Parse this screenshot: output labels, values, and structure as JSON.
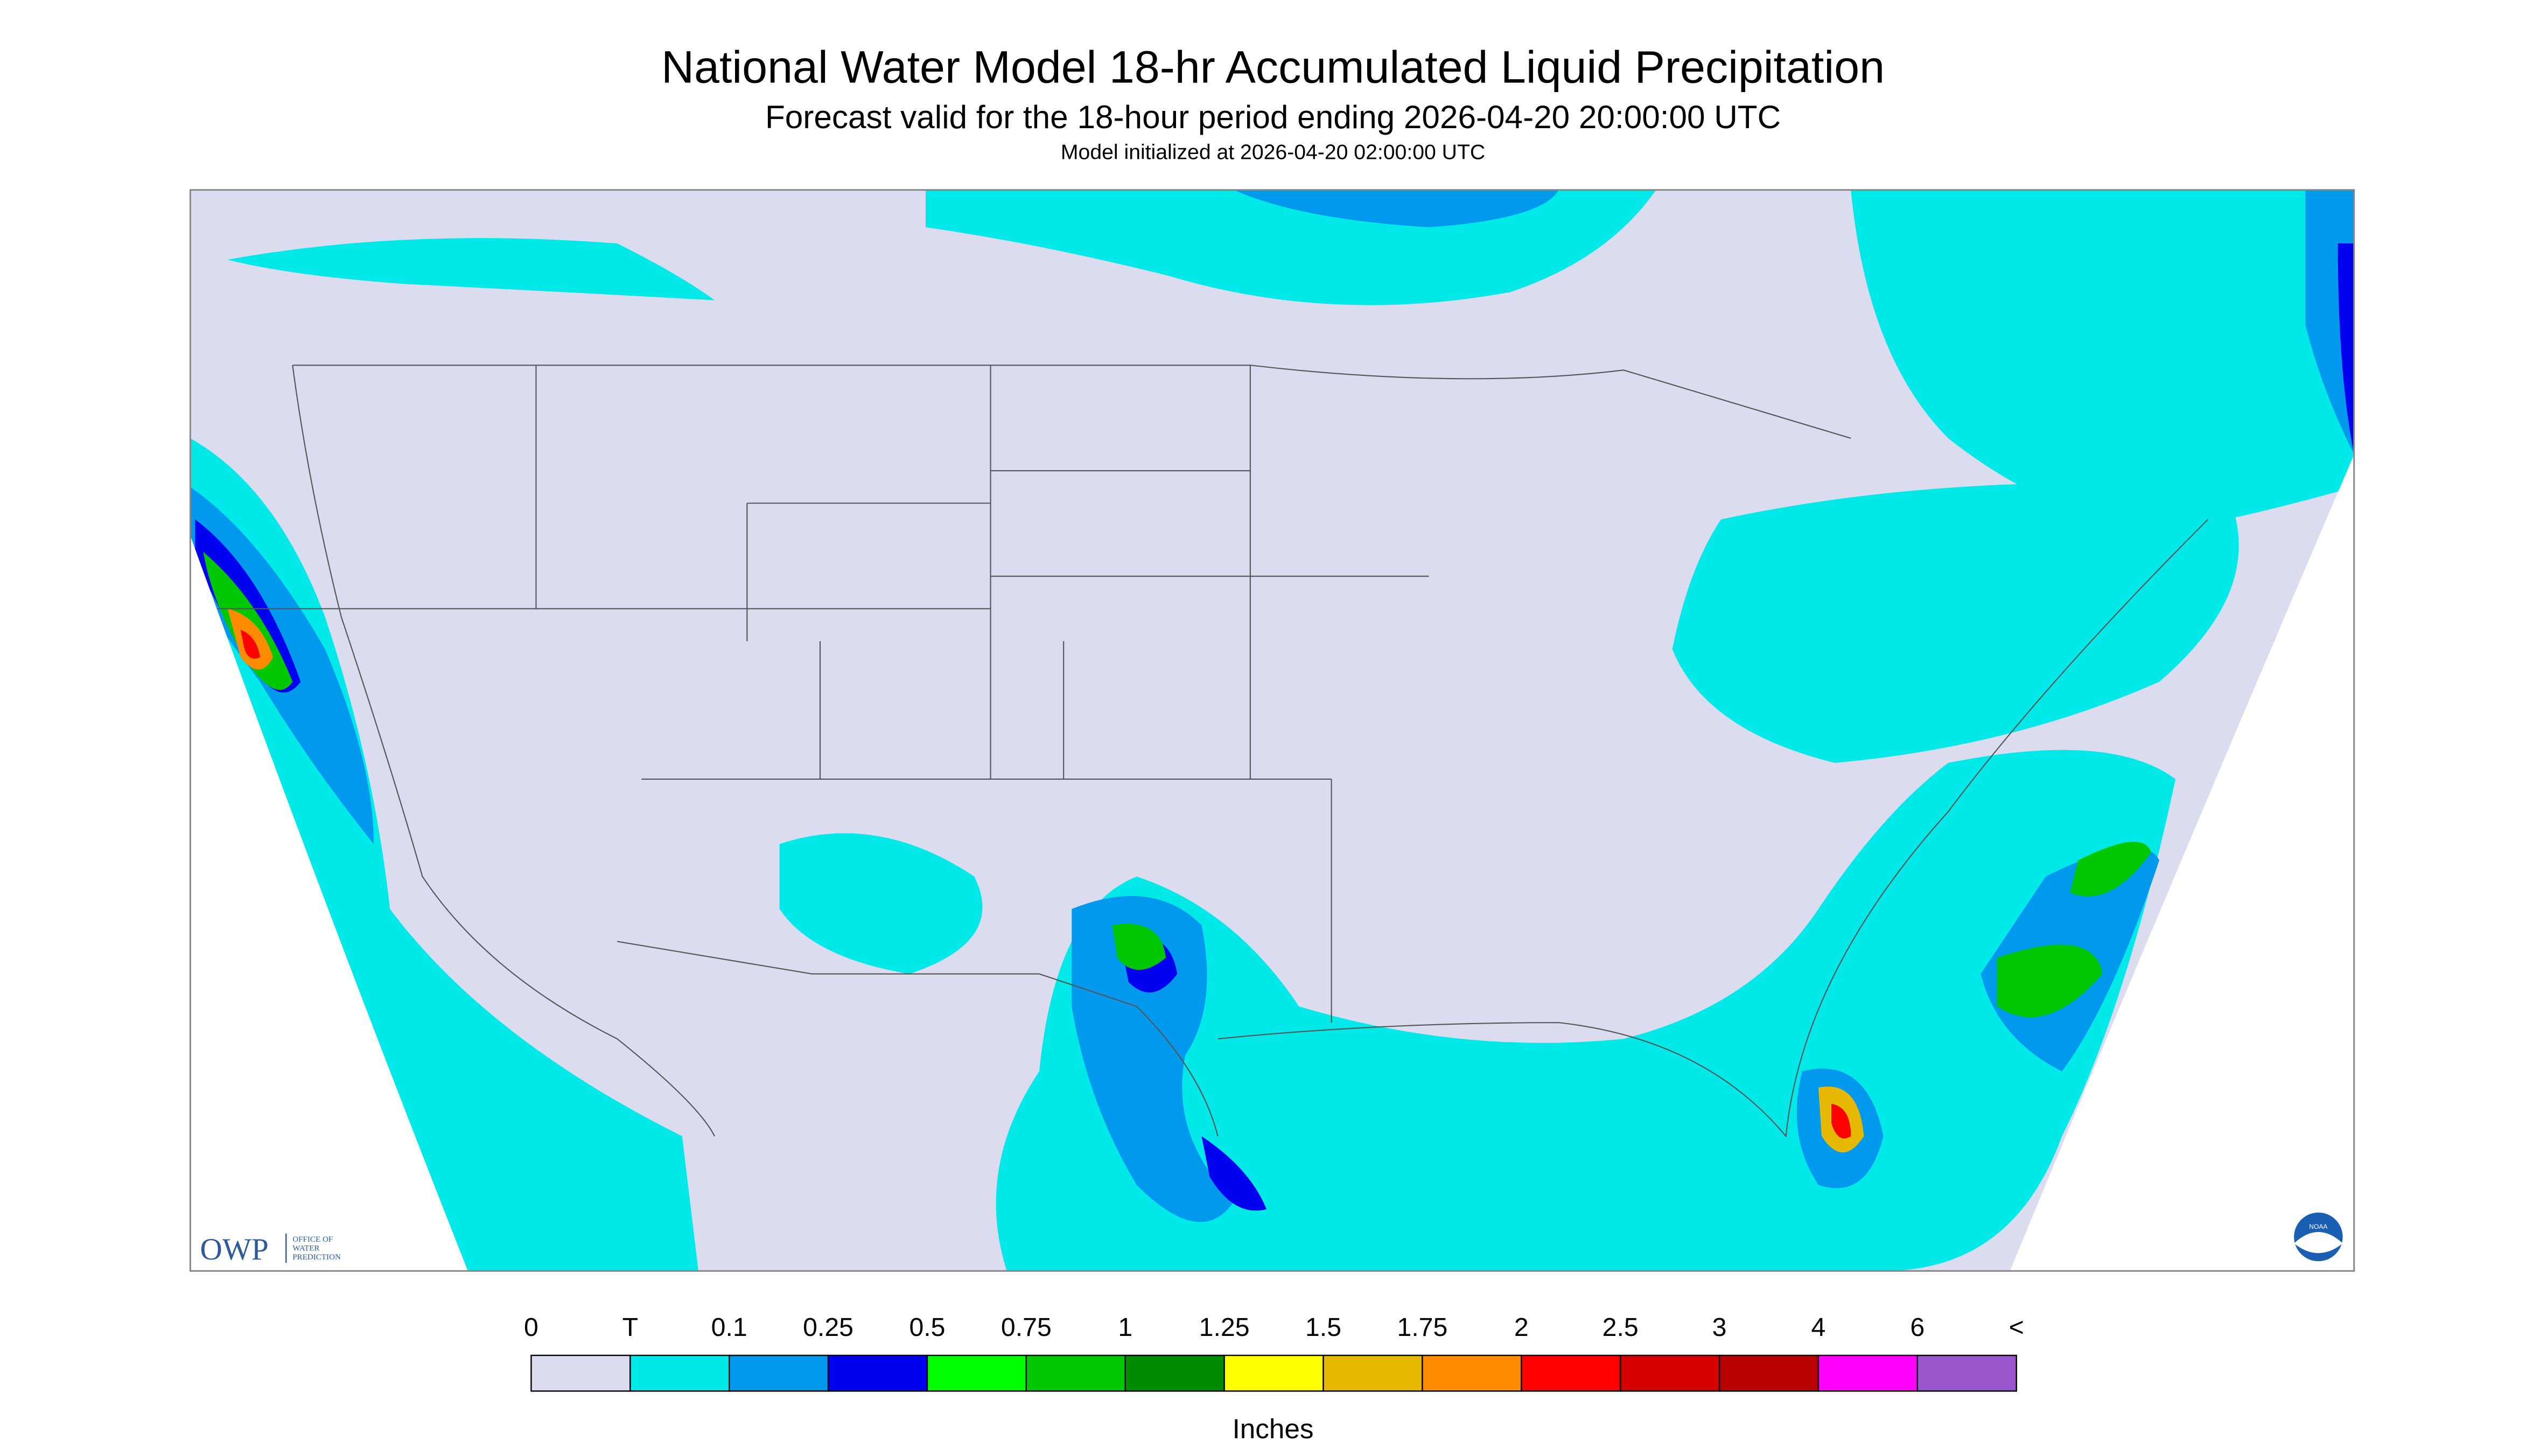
{
  "header": {
    "title": "National Water Model 18-hr Accumulated Liquid Precipitation",
    "subtitle": "Forecast valid for the 18-hour period ending 2026-04-20 20:00:00 UTC",
    "note": "Model initialized at 2026-04-20 02:00:00 UTC"
  },
  "legend": {
    "labels": [
      "0",
      "T",
      "0.1",
      "0.25",
      "0.5",
      "0.75",
      "1",
      "1.25",
      "1.5",
      "1.75",
      "2",
      "2.5",
      "3",
      "4",
      "6",
      "<"
    ],
    "colors": [
      "#dcdcf0",
      "#00e8e8",
      "#0099ee",
      "#0000f0",
      "#00ff00",
      "#00c800",
      "#008c00",
      "#ffff00",
      "#e6b800",
      "#ff8c00",
      "#ff0000",
      "#d60000",
      "#b80000",
      "#ff00ff",
      "#9955cc"
    ],
    "unit": "Inches"
  },
  "logos": {
    "owp": "OWP",
    "owp_lines": [
      "OFFICE OF",
      "WATER",
      "PREDICTION"
    ],
    "noaa": "NOAA"
  }
}
